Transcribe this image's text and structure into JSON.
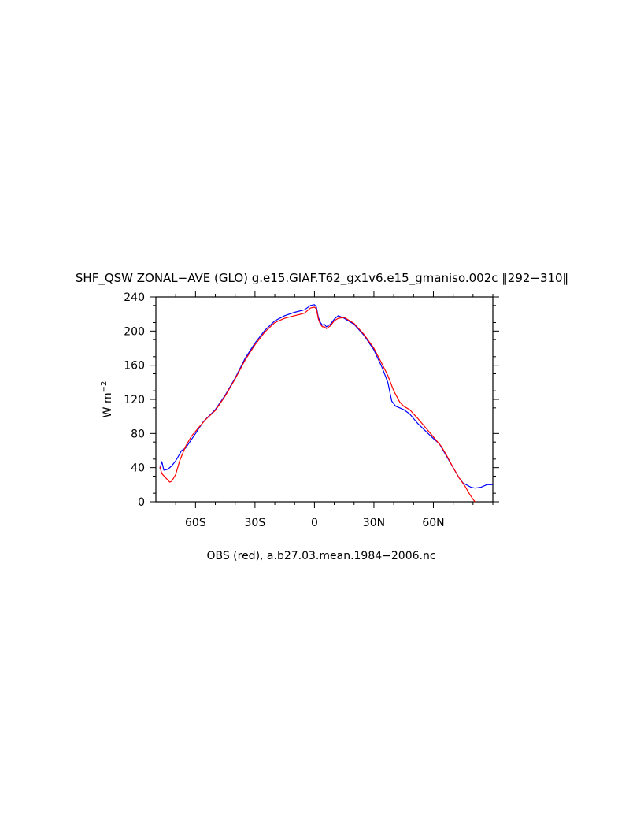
{
  "chart_data": {
    "type": "line",
    "title": "SHF_QSW ZONAL−AVE (GLO) g.e15.GIAF.T62_gx1v6.e15_gmaniso.002c ‖292−310‖",
    "ylabel_main": "W m",
    "ylabel_sup": "−2",
    "caption": "OBS (red), a.b27.03.mean.1984−2006.nc",
    "xlim": [
      -80,
      90
    ],
    "ylim": [
      0,
      240
    ],
    "x_ticks": [
      {
        "value": -60,
        "label": "60S"
      },
      {
        "value": -30,
        "label": "30S"
      },
      {
        "value": 0,
        "label": "0"
      },
      {
        "value": 30,
        "label": "30N"
      },
      {
        "value": 60,
        "label": "60N"
      }
    ],
    "y_ticks": [
      {
        "value": 0,
        "label": "0"
      },
      {
        "value": 40,
        "label": "40"
      },
      {
        "value": 80,
        "label": "80"
      },
      {
        "value": 120,
        "label": "120"
      },
      {
        "value": 160,
        "label": "160"
      },
      {
        "value": 200,
        "label": "200"
      },
      {
        "value": 240,
        "label": "240"
      }
    ],
    "series": [
      {
        "color": "#0000ff",
        "points": [
          [
            -78,
            38
          ],
          [
            -77,
            47
          ],
          [
            -76,
            37
          ],
          [
            -74,
            38
          ],
          [
            -72,
            42
          ],
          [
            -70,
            48
          ],
          [
            -67,
            60
          ],
          [
            -65,
            63
          ],
          [
            -60,
            80
          ],
          [
            -56,
            94
          ],
          [
            -50,
            108
          ],
          [
            -45,
            125
          ],
          [
            -40,
            145
          ],
          [
            -35,
            168
          ],
          [
            -30,
            186
          ],
          [
            -25,
            201
          ],
          [
            -20,
            212
          ],
          [
            -15,
            218
          ],
          [
            -10,
            222
          ],
          [
            -5,
            225
          ],
          [
            -2,
            230
          ],
          [
            0,
            231
          ],
          [
            1,
            228
          ],
          [
            2,
            216
          ],
          [
            3,
            210
          ],
          [
            4,
            207
          ],
          [
            5,
            208
          ],
          [
            6,
            205
          ],
          [
            8,
            208
          ],
          [
            10,
            214
          ],
          [
            12,
            218
          ],
          [
            15,
            215
          ],
          [
            20,
            208
          ],
          [
            25,
            195
          ],
          [
            30,
            178
          ],
          [
            34,
            158
          ],
          [
            37,
            140
          ],
          [
            39,
            118
          ],
          [
            41,
            112
          ],
          [
            43,
            110
          ],
          [
            45,
            108
          ],
          [
            48,
            103
          ],
          [
            52,
            92
          ],
          [
            56,
            83
          ],
          [
            60,
            74
          ],
          [
            63,
            68
          ],
          [
            67,
            52
          ],
          [
            70,
            40
          ],
          [
            73,
            28
          ],
          [
            75,
            22
          ],
          [
            79,
            17
          ],
          [
            81,
            16
          ],
          [
            84,
            17
          ],
          [
            87,
            20
          ],
          [
            90,
            20
          ]
        ]
      },
      {
        "color": "#ff0000",
        "points": [
          [
            -78,
            41
          ],
          [
            -77,
            33
          ],
          [
            -75,
            28
          ],
          [
            -73,
            23
          ],
          [
            -72,
            24
          ],
          [
            -70,
            32
          ],
          [
            -68,
            48
          ],
          [
            -65,
            65
          ],
          [
            -62,
            77
          ],
          [
            -58,
            88
          ],
          [
            -55,
            96
          ],
          [
            -50,
            107
          ],
          [
            -45,
            124
          ],
          [
            -40,
            144
          ],
          [
            -35,
            166
          ],
          [
            -30,
            184
          ],
          [
            -25,
            199
          ],
          [
            -20,
            210
          ],
          [
            -15,
            215
          ],
          [
            -10,
            218
          ],
          [
            -5,
            221
          ],
          [
            -2,
            227
          ],
          [
            0,
            228
          ],
          [
            1,
            226
          ],
          [
            2,
            214
          ],
          [
            3,
            208
          ],
          [
            4,
            205
          ],
          [
            5,
            205
          ],
          [
            6,
            203
          ],
          [
            8,
            206
          ],
          [
            10,
            212
          ],
          [
            12,
            215
          ],
          [
            15,
            216
          ],
          [
            20,
            209
          ],
          [
            25,
            196
          ],
          [
            30,
            180
          ],
          [
            34,
            162
          ],
          [
            37,
            148
          ],
          [
            40,
            130
          ],
          [
            43,
            117
          ],
          [
            45,
            112
          ],
          [
            48,
            108
          ],
          [
            52,
            98
          ],
          [
            56,
            87
          ],
          [
            60,
            76
          ],
          [
            64,
            65
          ],
          [
            67,
            53
          ],
          [
            70,
            40
          ],
          [
            73,
            28
          ],
          [
            76,
            18
          ],
          [
            78,
            10
          ],
          [
            80,
            3
          ],
          [
            81,
            0
          ]
        ]
      }
    ]
  }
}
